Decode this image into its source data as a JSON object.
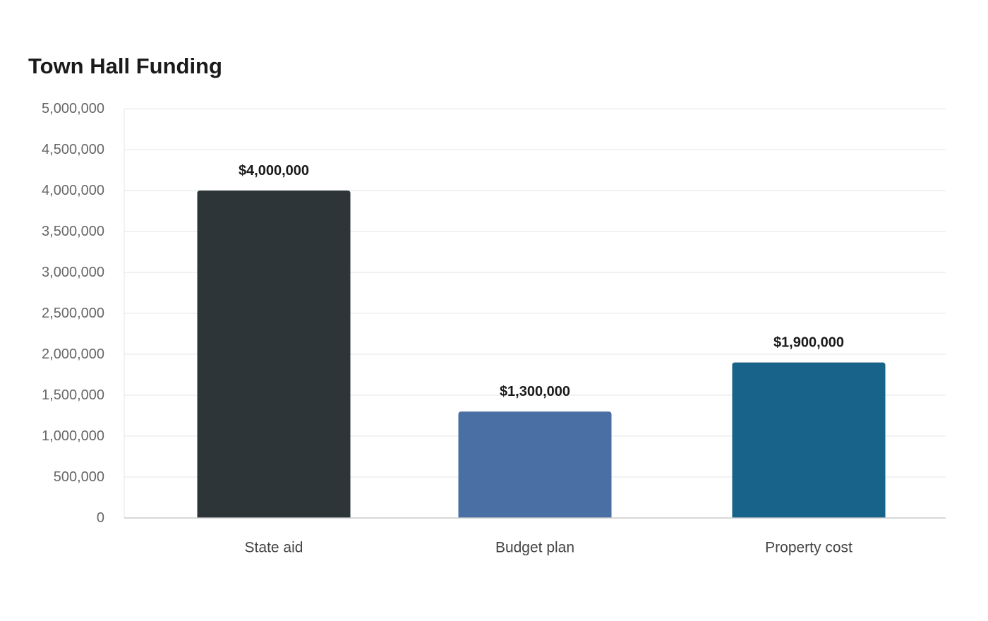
{
  "chart_data": {
    "type": "bar",
    "title": "Town Hall Funding",
    "categories": [
      "State aid",
      "Budget plan",
      "Property cost"
    ],
    "values": [
      4000000,
      1300000,
      1900000
    ],
    "data_labels": [
      "$4,000,000",
      "$1,300,000",
      "$1,900,000"
    ],
    "colors": [
      "#2e3538",
      "#4a6fa5",
      "#176389"
    ],
    "ylim": [
      0,
      5000000
    ],
    "y_ticks": [
      0,
      500000,
      1000000,
      1500000,
      2000000,
      2500000,
      3000000,
      3500000,
      4000000,
      4500000,
      5000000
    ],
    "y_tick_labels": [
      "0",
      "500,000",
      "1,000,000",
      "1,500,000",
      "2,000,000",
      "2,500,000",
      "3,000,000",
      "3,500,000",
      "4,000,000",
      "4,500,000",
      "5,000,000"
    ],
    "grid": true,
    "legend": "none"
  }
}
